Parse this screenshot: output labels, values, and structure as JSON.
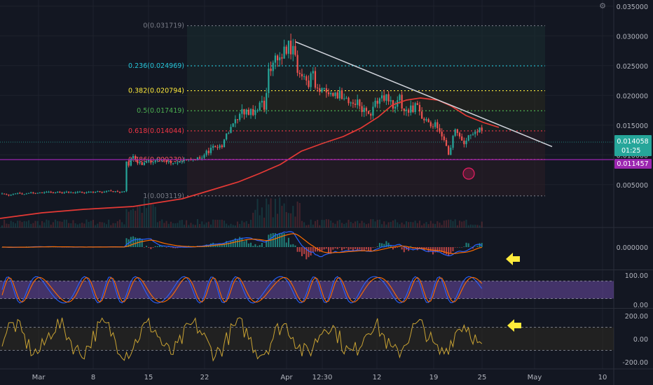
{
  "chart_data": {
    "type": "candlestick",
    "symbol": "",
    "x_ticks": [
      "Mar",
      "8",
      "15",
      "22",
      "Apr",
      "12:30",
      "12",
      "19",
      "25",
      "May",
      "10"
    ],
    "y_ticks_price": [
      "0.035000",
      "0.030000",
      "0.025000",
      "0.020000",
      "0.015000",
      "0.010000",
      "0.005000"
    ],
    "price_range": [
      0,
      0.0375
    ],
    "fib_levels": [
      {
        "label": "0(0.031719)",
        "value": 0.031719,
        "color": "#787b86"
      },
      {
        "label": "0.236(0.024969)",
        "value": 0.024969,
        "color": "#26c6da"
      },
      {
        "label": "0.382(0.020794)",
        "value": 0.020794,
        "color": "#ffeb3b"
      },
      {
        "label": "0.5(0.017419)",
        "value": 0.017419,
        "color": "#4caf50"
      },
      {
        "label": "0.618(0.014044)",
        "value": 0.014044,
        "color": "#f23645"
      },
      {
        "label": "0.786(0.009239)",
        "value": 0.009239,
        "color": "#f7525f"
      },
      {
        "label": "1(0.003119)",
        "value": 0.003119,
        "color": "#787b86"
      }
    ],
    "price_badges": [
      {
        "value": "0.014058",
        "sub": "01:25",
        "color": "#26a69a"
      },
      {
        "value": "0.011457",
        "color": "#9c27b0"
      }
    ],
    "trendline": {
      "from": [
        "Apr",
        0.029
      ],
      "to": [
        "May",
        0.0114
      ]
    },
    "moving_average_color": "#e53935",
    "macd": {
      "y_tick": "0.000000"
    },
    "stoch_rsi": {
      "y_ticks": [
        "100.00",
        "0.00"
      ],
      "band": [
        20,
        80
      ]
    },
    "cci": {
      "y_ticks": [
        "200.00",
        "0.00",
        "-200.00"
      ],
      "band": [
        -100,
        100
      ]
    },
    "close_series": [
      0.0035,
      0.0034,
      0.0033,
      0.0032,
      0.0033,
      0.0034,
      0.0035,
      0.0036,
      0.0035,
      0.0034,
      0.0034,
      0.0035,
      0.0036,
      0.0037,
      0.0036,
      0.0035,
      0.0036,
      0.0037,
      0.0036,
      0.0037,
      0.0038,
      0.0038,
      0.0037,
      0.0036,
      0.0037,
      0.0038,
      0.0037,
      0.0036,
      0.0037,
      0.0038,
      0.0037,
      0.0037,
      0.0036,
      0.0037,
      0.0038,
      0.0038,
      0.0037,
      0.0036,
      0.0037,
      0.0038,
      0.0038,
      0.0037,
      0.0038,
      0.0039,
      0.0038,
      0.0037,
      0.0038,
      0.0039,
      0.004,
      0.0039,
      0.0038,
      0.0039,
      0.0038,
      0.0037,
      0.0038,
      0.0039,
      0.0089,
      0.0082,
      0.0094,
      0.0098,
      0.0091,
      0.0086,
      0.0088,
      0.0083,
      0.0087,
      0.0089,
      0.0091,
      0.0087,
      0.0088,
      0.0091,
      0.0093,
      0.0092,
      0.0092,
      0.0091,
      0.0088,
      0.0089,
      0.0086,
      0.0086,
      0.0087,
      0.0087,
      0.0089,
      0.009,
      0.0092,
      0.0091,
      0.0093,
      0.0091,
      0.0092,
      0.0091,
      0.0096,
      0.0094,
      0.0095,
      0.01,
      0.0107,
      0.0103,
      0.0112,
      0.0115,
      0.0113,
      0.0112,
      0.0116,
      0.0113,
      0.0126,
      0.0136,
      0.0137,
      0.0147,
      0.0153,
      0.016,
      0.0159,
      0.0169,
      0.0177,
      0.0168,
      0.0176,
      0.0167,
      0.0177,
      0.0167,
      0.0175,
      0.0175,
      0.0188,
      0.0191,
      0.0176,
      0.0204,
      0.0245,
      0.0241,
      0.0255,
      0.0267,
      0.0259,
      0.0264,
      0.0262,
      0.0282,
      0.027,
      0.0292,
      0.0269,
      0.0283,
      0.0268,
      0.0238,
      0.0236,
      0.0232,
      0.0232,
      0.0225,
      0.0214,
      0.0237,
      0.0241,
      0.0213,
      0.0212,
      0.0206,
      0.0212,
      0.0212,
      0.0205,
      0.0202,
      0.0204,
      0.0199,
      0.0205,
      0.0195,
      0.0208,
      0.0194,
      0.0195,
      0.0196,
      0.0187,
      0.0188,
      0.0186,
      0.0184,
      0.0193,
      0.0182,
      0.0172,
      0.0179,
      0.0174,
      0.0169,
      0.0166,
      0.0181,
      0.0191,
      0.0186,
      0.0195,
      0.02,
      0.0191,
      0.0202,
      0.019,
      0.0192,
      0.0178,
      0.0181,
      0.0192,
      0.0201,
      0.0178,
      0.0174,
      0.0176,
      0.0171,
      0.0183,
      0.0172,
      0.0187,
      0.0184,
      0.0173,
      0.0161,
      0.0158,
      0.016,
      0.0155,
      0.0148,
      0.0147,
      0.0155,
      0.0145,
      0.0139,
      0.0131,
      0.0125,
      0.0115,
      0.01,
      0.0112,
      0.0132,
      0.0143,
      0.0137,
      0.0131,
      0.0124,
      0.0118,
      0.0124,
      0.0133,
      0.0134,
      0.0135,
      0.0139,
      0.0138,
      0.0146,
      0.0141
    ]
  }
}
